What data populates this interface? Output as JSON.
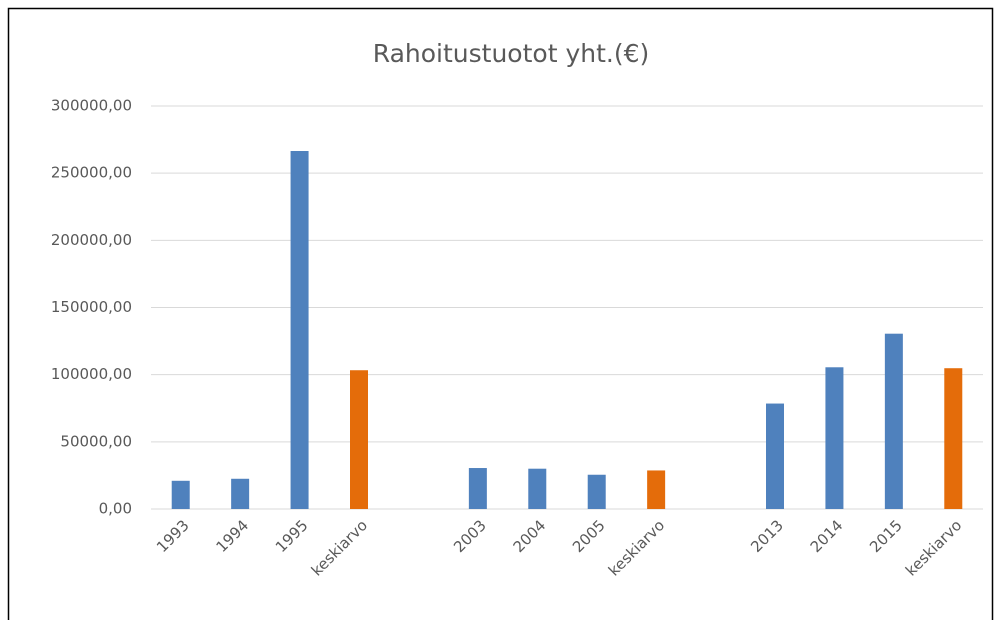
{
  "chart_data": {
    "type": "bar",
    "title": "Rahoitustuotot yht.(€)",
    "categories": [
      "1993",
      "1994",
      "1995",
      "keskiarvo",
      null,
      "2003",
      "2004",
      "2005",
      "keskiarvo",
      null,
      "2013",
      "2014",
      "2015",
      "keskiarvo"
    ],
    "values": [
      21000,
      22500,
      266500,
      103300,
      null,
      30500,
      30000,
      25500,
      28700,
      null,
      78500,
      105500,
      130500,
      104800
    ],
    "colors": [
      "#4f81bd",
      "#4f81bd",
      "#4f81bd",
      "#e46c0a",
      null,
      "#4f81bd",
      "#4f81bd",
      "#4f81bd",
      "#e46c0a",
      null,
      "#4f81bd",
      "#4f81bd",
      "#4f81bd",
      "#e46c0a"
    ],
    "ylim": [
      0,
      300000
    ],
    "yticks": [
      {
        "value": 0,
        "label": "0,00"
      },
      {
        "value": 50000,
        "label": "50000,00"
      },
      {
        "value": 100000,
        "label": "100000,00"
      },
      {
        "value": 150000,
        "label": "150000,00"
      },
      {
        "value": 200000,
        "label": "200000,00"
      },
      {
        "value": 250000,
        "label": "250000,00"
      },
      {
        "value": 300000,
        "label": "300000,00"
      }
    ],
    "grid": true
  }
}
